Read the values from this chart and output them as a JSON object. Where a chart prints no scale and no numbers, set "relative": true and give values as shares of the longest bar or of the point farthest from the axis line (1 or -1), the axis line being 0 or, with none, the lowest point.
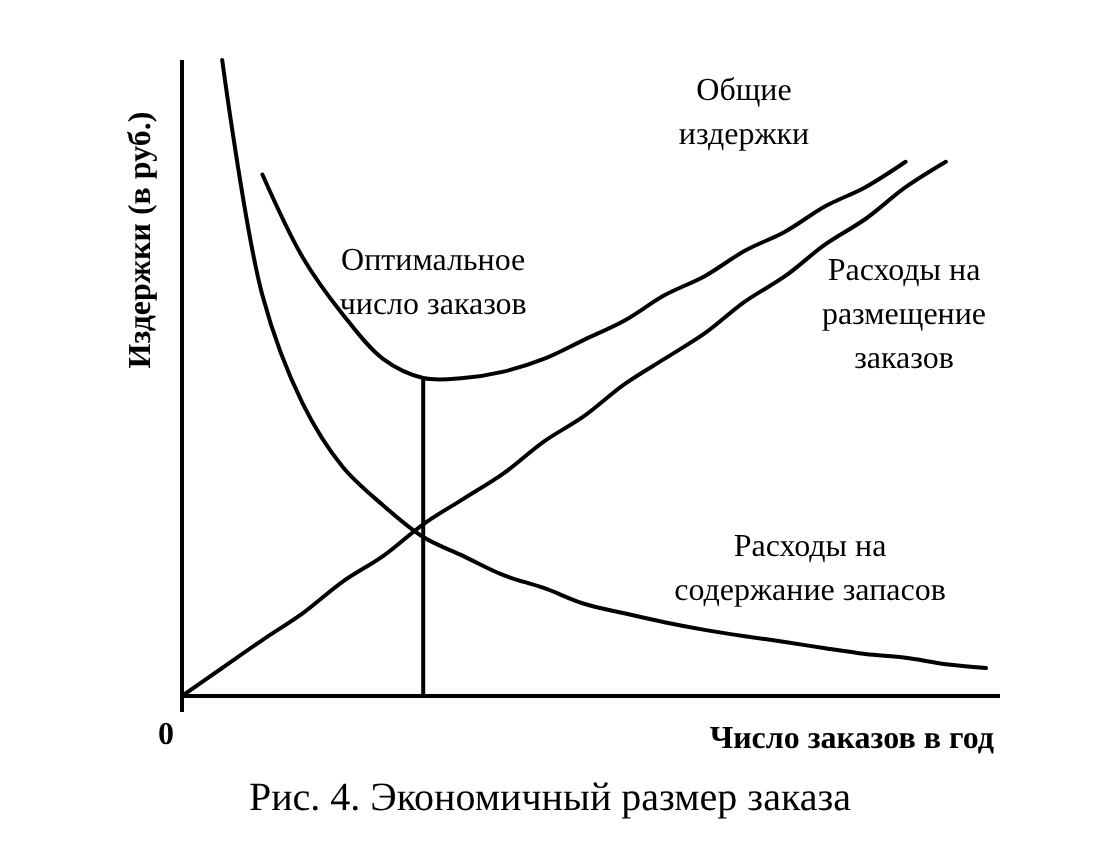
{
  "chart_data": {
    "type": "line",
    "title": "Рис. 4. Экономичный размер заказа",
    "xlabel": "Число заказов в год",
    "ylabel": "Издержки (в руб.)",
    "relative": true,
    "categories": [
      null,
      null,
      null,
      null,
      null,
      null,
      null,
      null,
      null,
      null,
      null,
      null,
      null,
      null,
      null,
      null,
      null,
      null,
      null,
      null,
      null
    ],
    "series": [
      {
        "name": "Общие издержки",
        "color": "#000000",
        "values": [
          null,
          null,
          0.82,
          0.69,
          0.6,
          0.53,
          0.5,
          0.5,
          0.51,
          0.53,
          0.56,
          0.59,
          0.63,
          0.66,
          0.7,
          0.73,
          0.77,
          0.8,
          0.84,
          null,
          null
        ]
      },
      {
        "name": "Расходы на размещение заказов",
        "color": "#000000",
        "values": [
          0,
          0.044,
          0.088,
          0.13,
          0.18,
          0.22,
          0.27,
          0.31,
          0.35,
          0.4,
          0.44,
          0.49,
          0.53,
          0.57,
          0.62,
          0.66,
          0.71,
          0.75,
          0.8,
          0.84,
          null
        ]
      },
      {
        "name": "Расходы на содержание запасов",
        "color": "#000000",
        "values": [
          null,
          1,
          0.63,
          0.46,
          0.36,
          0.3,
          0.25,
          0.22,
          0.19,
          0.17,
          0.145,
          0.13,
          0.116,
          0.104,
          0.094,
          0.085,
          0.075,
          0.066,
          0.06,
          0.05,
          0.044
        ]
      }
    ],
    "annotations": [
      "Оптимальное число заказов",
      "0"
    ]
  }
}
